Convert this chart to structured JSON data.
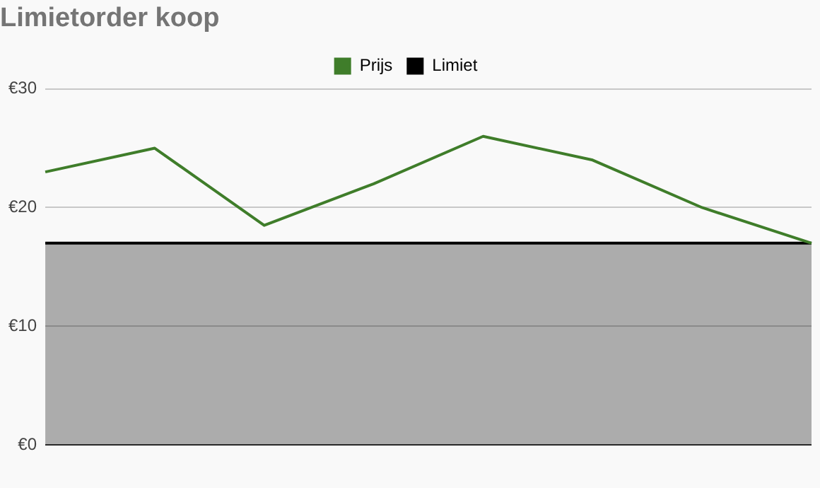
{
  "chart_data": {
    "type": "line",
    "title": "Limietorder koop",
    "categories": [
      null,
      null,
      null,
      null,
      null,
      null,
      null,
      null
    ],
    "series": [
      {
        "name": "Prijs",
        "color": "#3f7d2a",
        "values": [
          23,
          25,
          18.5,
          22,
          26,
          24,
          20,
          17
        ]
      },
      {
        "name": "Limiet",
        "type": "area",
        "color": "#000000",
        "values": [
          17,
          17,
          17,
          17,
          17,
          17,
          17,
          17
        ]
      }
    ],
    "ylim": [
      0,
      30
    ],
    "yticks": [
      {
        "value": 0,
        "label": "€0"
      },
      {
        "value": 10,
        "label": "€10"
      },
      {
        "value": 20,
        "label": "€20"
      },
      {
        "value": 30,
        "label": "€30"
      }
    ],
    "grid": "y",
    "legend": "top",
    "marker": "none",
    "line_style": "solid"
  }
}
